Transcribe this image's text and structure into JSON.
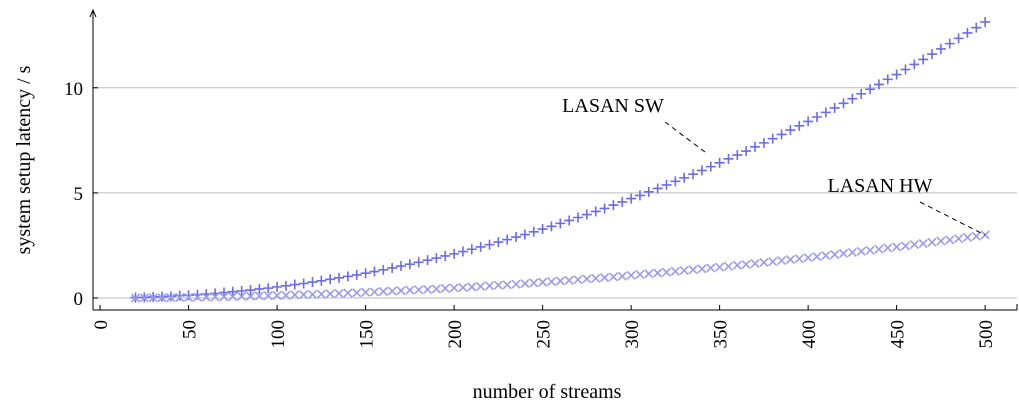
{
  "chart_data": {
    "type": "scatter",
    "x_label": "number of streams",
    "y_label": "system setup latency / s",
    "x": [
      20,
      25,
      30,
      35,
      40,
      45,
      50,
      55,
      60,
      65,
      70,
      75,
      80,
      85,
      90,
      95,
      100,
      105,
      110,
      115,
      120,
      125,
      130,
      135,
      140,
      145,
      150,
      155,
      160,
      165,
      170,
      175,
      180,
      185,
      190,
      195,
      200,
      205,
      210,
      215,
      220,
      225,
      230,
      235,
      240,
      245,
      250,
      255,
      260,
      265,
      270,
      275,
      280,
      285,
      290,
      295,
      300,
      305,
      310,
      315,
      320,
      325,
      330,
      335,
      340,
      345,
      350,
      355,
      360,
      365,
      370,
      375,
      380,
      385,
      390,
      395,
      400,
      405,
      410,
      415,
      420,
      425,
      430,
      435,
      440,
      445,
      450,
      455,
      460,
      465,
      470,
      475,
      480,
      485,
      490,
      495,
      500
    ],
    "series": [
      {
        "name": "LASAN SW",
        "color": "#6b6be6",
        "marker": "plus",
        "values": [
          0.02,
          0.03,
          0.05,
          0.06,
          0.08,
          0.11,
          0.13,
          0.16,
          0.19,
          0.22,
          0.26,
          0.3,
          0.34,
          0.38,
          0.43,
          0.47,
          0.53,
          0.58,
          0.64,
          0.69,
          0.76,
          0.82,
          0.89,
          0.96,
          1.03,
          1.1,
          1.18,
          1.26,
          1.34,
          1.43,
          1.52,
          1.61,
          1.7,
          1.8,
          1.9,
          2.0,
          2.1,
          2.21,
          2.32,
          2.43,
          2.54,
          2.66,
          2.78,
          2.9,
          3.02,
          3.15,
          3.28,
          3.41,
          3.55,
          3.69,
          3.83,
          3.97,
          4.12,
          4.26,
          4.42,
          4.57,
          4.73,
          4.88,
          5.05,
          5.21,
          5.38,
          5.55,
          5.72,
          5.89,
          6.07,
          6.25,
          6.43,
          6.62,
          6.8,
          6.99,
          7.19,
          7.38,
          7.58,
          7.78,
          7.99,
          8.19,
          8.4,
          8.61,
          8.83,
          9.04,
          9.26,
          9.48,
          9.71,
          9.93,
          10.16,
          10.4,
          10.63,
          10.87,
          11.11,
          11.35,
          11.6,
          11.85,
          12.1,
          12.35,
          12.61,
          12.86,
          13.13
        ]
      },
      {
        "name": "LASAN HW",
        "color": "#9a9aee",
        "marker": "cross",
        "values": [
          0.0,
          0.01,
          0.01,
          0.01,
          0.02,
          0.02,
          0.03,
          0.04,
          0.04,
          0.05,
          0.06,
          0.07,
          0.08,
          0.09,
          0.1,
          0.11,
          0.12,
          0.13,
          0.15,
          0.16,
          0.17,
          0.19,
          0.2,
          0.22,
          0.24,
          0.25,
          0.27,
          0.29,
          0.31,
          0.33,
          0.35,
          0.37,
          0.39,
          0.41,
          0.43,
          0.46,
          0.48,
          0.5,
          0.53,
          0.55,
          0.58,
          0.61,
          0.63,
          0.66,
          0.69,
          0.72,
          0.75,
          0.78,
          0.81,
          0.84,
          0.87,
          0.91,
          0.94,
          0.97,
          1.01,
          1.04,
          1.08,
          1.12,
          1.15,
          1.19,
          1.23,
          1.27,
          1.31,
          1.35,
          1.39,
          1.43,
          1.47,
          1.51,
          1.56,
          1.6,
          1.64,
          1.69,
          1.73,
          1.78,
          1.83,
          1.87,
          1.92,
          1.97,
          2.02,
          2.07,
          2.12,
          2.17,
          2.22,
          2.27,
          2.32,
          2.38,
          2.43,
          2.48,
          2.54,
          2.59,
          2.65,
          2.71,
          2.76,
          2.82,
          2.88,
          2.94,
          3.0
        ]
      }
    ],
    "xlim": [
      -4,
      518
    ],
    "ylim": [
      -0.57,
      13.7
    ],
    "xticks": [
      0,
      50,
      100,
      150,
      200,
      250,
      300,
      350,
      400,
      450,
      500
    ],
    "yticks": [
      0,
      5,
      10
    ],
    "grid": true
  }
}
